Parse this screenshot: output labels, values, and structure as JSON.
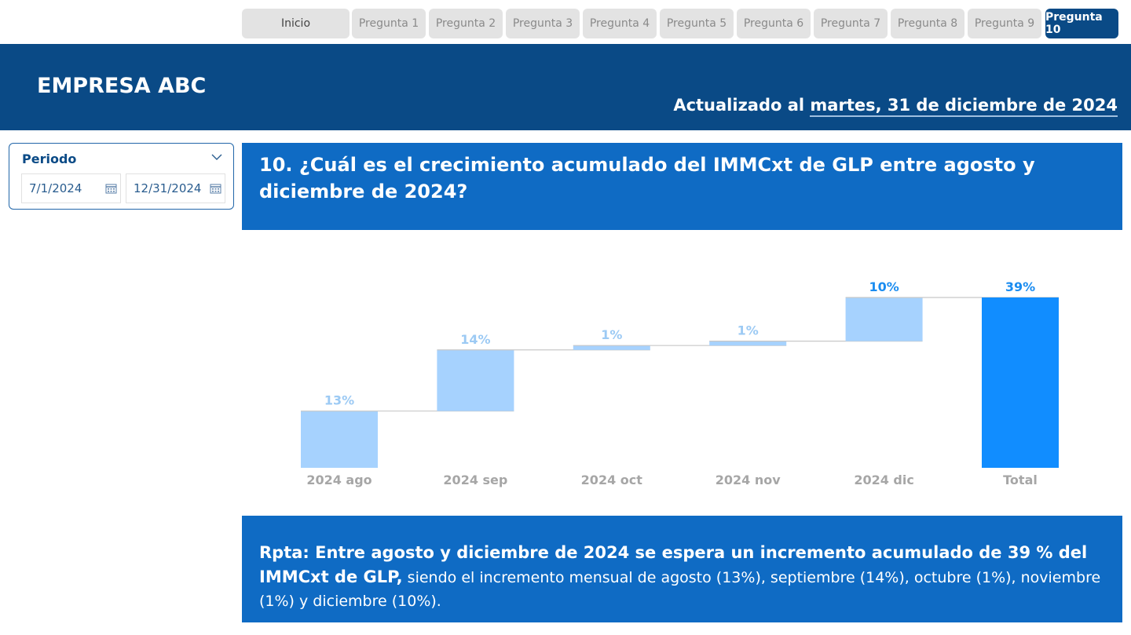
{
  "nav": {
    "items": [
      "Inicio",
      "Pregunta 1",
      "Pregunta 2",
      "Pregunta 3",
      "Pregunta 4",
      "Pregunta 5",
      "Pregunta 6",
      "Pregunta 7",
      "Pregunta 8",
      "Pregunta 9",
      "Pregunta 10"
    ],
    "active_index": 10
  },
  "header": {
    "company": "EMPRESA ABC",
    "updated_prefix": "Actualizado al ",
    "updated_date": "martes, 31 de diciembre de 2024"
  },
  "filter": {
    "title": "Periodo",
    "start_date": "7/1/2024",
    "end_date": "12/31/2024",
    "icons": {
      "dropdown": "chevron-down-icon",
      "calendar": "calendar-icon"
    }
  },
  "question": {
    "text": "10. ¿Cuál es el crecimiento acumulado del IMMCxt de GLP entre agosto y diciembre de 2024?"
  },
  "chart_data": {
    "type": "bar",
    "subtype": "waterfall",
    "categories": [
      "2024 ago",
      "2024 sep",
      "2024 oct",
      "2024 nov",
      "2024 dic",
      "Total"
    ],
    "values": [
      13,
      14,
      1,
      1,
      10,
      39
    ],
    "labels": [
      "13%",
      "14%",
      "1%",
      "1%",
      "10%",
      "39%"
    ],
    "unit": "%",
    "colors": {
      "increase": "#a6d2fe",
      "total": "#118dff",
      "increase_label": "#9ccaf4",
      "total_label": "#1a8cf0",
      "axis_label": "#a6a6a6"
    }
  },
  "answer": {
    "bold_text": "Rpta: Entre agosto y diciembre de 2024 se espera un incremento acumulado de 39 % del IMMCxt de GLP,",
    "normal_text": " siendo el incremento mensual de agosto (13%), septiembre (14%), octubre (1%), noviembre (1%) y diciembre (10%)."
  }
}
